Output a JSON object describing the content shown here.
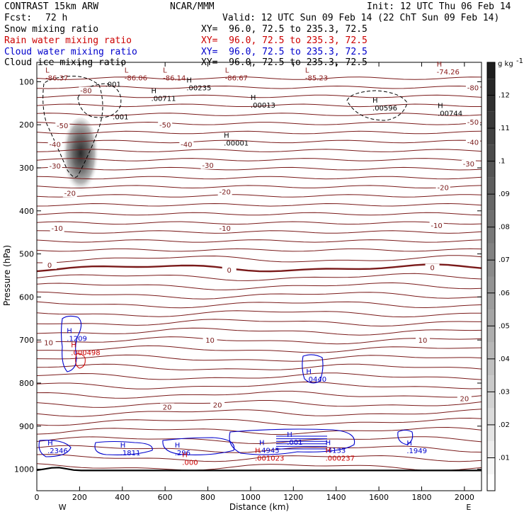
{
  "header": {
    "model": "CONTRAST 15km ARW",
    "org": "NCAR/MMM",
    "init": "Init: 12 UTC Thu 06 Feb 14",
    "fcst_label": "Fcst:",
    "fcst_value": "72 h",
    "valid": "Valid: 12 UTC Sun 09 Feb 14 (22 ChT Sun 09 Feb 14)"
  },
  "fields": [
    {
      "name": "Snow mixing ratio",
      "xy": "XY=  96.0, 72.5 to 235.3, 72.5",
      "color": "#000000"
    },
    {
      "name": "Rain water mixing ratio",
      "xy": "XY=  96.0, 72.5 to 235.3, 72.5",
      "color": "#cc0000"
    },
    {
      "name": "Cloud water mixing ratio",
      "xy": "XY=  96.0, 72.5 to 235.3, 72.5",
      "color": "#0000cc"
    },
    {
      "name": "Cloud ice mixing ratio",
      "xy": "XY=  96.0, 72.5 to 235.3, 72.5",
      "color": "#000000"
    }
  ],
  "chart_data": {
    "type": "cross-section",
    "xlabel": "Distance (km)",
    "ylabel": "Pressure (hPa)",
    "xlim": [
      0,
      2080
    ],
    "ylim": [
      1050,
      55
    ],
    "x_ticks": [
      0,
      200,
      400,
      600,
      800,
      1000,
      1200,
      1400,
      1600,
      1800,
      2000
    ],
    "y_ticks": [
      100,
      200,
      300,
      400,
      500,
      600,
      700,
      800,
      900,
      1000
    ],
    "end_labels": {
      "west": "W",
      "east": "E"
    },
    "colorbar": {
      "unit": "g kg",
      "unit_exp": "-1",
      "ticks": [
        ".01",
        ".02",
        ".03",
        ".04",
        ".05",
        ".06",
        ".07",
        ".08",
        ".09",
        ".1",
        ".11",
        ".12"
      ],
      "tick_values": [
        0.01,
        0.02,
        0.03,
        0.04,
        0.05,
        0.06,
        0.07,
        0.08,
        0.09,
        0.1,
        0.11,
        0.12
      ],
      "max": 0.13
    },
    "temperature_labels": [
      {
        "text": "-80",
        "x": 230,
        "p": 125
      },
      {
        "text": "-80",
        "x": 2040,
        "p": 118
      },
      {
        "text": "-50",
        "x": 120,
        "p": 206
      },
      {
        "text": "-50",
        "x": 600,
        "p": 205
      },
      {
        "text": "-50",
        "x": 2040,
        "p": 198
      },
      {
        "text": "-40",
        "x": 85,
        "p": 250
      },
      {
        "text": "-40",
        "x": 700,
        "p": 250
      },
      {
        "text": "-40",
        "x": 2040,
        "p": 245
      },
      {
        "text": "-30",
        "x": 85,
        "p": 300
      },
      {
        "text": "-30",
        "x": 800,
        "p": 298
      },
      {
        "text": "-30",
        "x": 2020,
        "p": 295
      },
      {
        "text": "-20",
        "x": 155,
        "p": 363
      },
      {
        "text": "-20",
        "x": 880,
        "p": 360
      },
      {
        "text": "-20",
        "x": 1900,
        "p": 350
      },
      {
        "text": "-10",
        "x": 95,
        "p": 445
      },
      {
        "text": "-10",
        "x": 880,
        "p": 445
      },
      {
        "text": "-10",
        "x": 1870,
        "p": 438
      },
      {
        "text": "0",
        "x": 60,
        "p": 530
      },
      {
        "text": "0",
        "x": 900,
        "p": 542
      },
      {
        "text": "0",
        "x": 1850,
        "p": 536
      },
      {
        "text": "10",
        "x": 55,
        "p": 710
      },
      {
        "text": "10",
        "x": 810,
        "p": 705
      },
      {
        "text": "10",
        "x": 1805,
        "p": 705
      },
      {
        "text": "20",
        "x": 610,
        "p": 860
      },
      {
        "text": "20",
        "x": 845,
        "p": 855
      },
      {
        "text": "20",
        "x": 2000,
        "p": 840
      }
    ],
    "high_low_labels": [
      {
        "kind": "L",
        "value": "-86.37",
        "x": 40,
        "p": 92,
        "color": "#8b1a1a"
      },
      {
        "kind": "L",
        "value": "-86.06",
        "x": 410,
        "p": 92,
        "color": "#8b1a1a"
      },
      {
        "kind": "L",
        "value": "-86.14",
        "x": 590,
        "p": 92,
        "color": "#8b1a1a"
      },
      {
        "kind": "L",
        "value": "-86.67",
        "x": 880,
        "p": 92,
        "color": "#8b1a1a"
      },
      {
        "kind": "L",
        "value": "-85.23",
        "x": 1255,
        "p": 92,
        "color": "#8b1a1a"
      },
      {
        "kind": "H",
        "value": "-74.26",
        "x": 1870,
        "p": 78,
        "color": "#8b1a1a"
      },
      {
        "kind": "H",
        "value": ".00711",
        "x": 535,
        "p": 140,
        "color": "#000000"
      },
      {
        "kind": "H",
        "value": ".00235",
        "x": 700,
        "p": 115,
        "color": "#000000"
      },
      {
        "kind": "H",
        "value": ".00013",
        "x": 1000,
        "p": 155,
        "color": "#000000"
      },
      {
        "kind": "H",
        "value": ".00596",
        "x": 1570,
        "p": 162,
        "color": "#000000"
      },
      {
        "kind": "H",
        "value": ".00744",
        "x": 1875,
        "p": 174,
        "color": "#000000"
      },
      {
        "kind": "H",
        "value": ".00001",
        "x": 875,
        "p": 243,
        "color": "#000000"
      },
      {
        "kind": "H",
        "value": ".1209",
        "x": 140,
        "p": 697,
        "color": "#0000cc"
      },
      {
        "kind": "H",
        "value": ".000498",
        "x": 160,
        "p": 730,
        "color": "#cc0000"
      },
      {
        "kind": "H",
        "value": ".0440",
        "x": 1260,
        "p": 792,
        "color": "#0000cc"
      },
      {
        "kind": "H",
        "value": ".2346",
        "x": 50,
        "p": 958,
        "color": "#0000cc"
      },
      {
        "kind": "H",
        "value": ".1811",
        "x": 390,
        "p": 963,
        "color": "#0000cc"
      },
      {
        "kind": "H",
        "value": ".296",
        "x": 645,
        "p": 963,
        "color": "#0000cc"
      },
      {
        "kind": "H",
        "value": ".000",
        "x": 680,
        "p": 985,
        "color": "#cc0000"
      },
      {
        "kind": "H",
        "value": ".4945",
        "x": 1040,
        "p": 957,
        "color": "#0000cc"
      },
      {
        "kind": "H",
        "value": ".001023",
        "x": 1020,
        "p": 975,
        "color": "#cc0000"
      },
      {
        "kind": "H",
        "value": ".001",
        "x": 1170,
        "p": 938,
        "color": "#0000cc"
      },
      {
        "kind": "H",
        "value": ".4133",
        "x": 1350,
        "p": 957,
        "color": "#0000cc"
      },
      {
        "kind": "H",
        "value": ".000237",
        "x": 1350,
        "p": 975,
        "color": "#cc0000"
      },
      {
        "kind": "H",
        "value": ".1949",
        "x": 1730,
        "p": 958,
        "color": "#0000cc"
      }
    ],
    "snow_labels": [
      {
        "text": ".001",
        "x": 320,
        "p": 112
      },
      {
        "text": ".001",
        "x": 355,
        "p": 187
      }
    ]
  }
}
